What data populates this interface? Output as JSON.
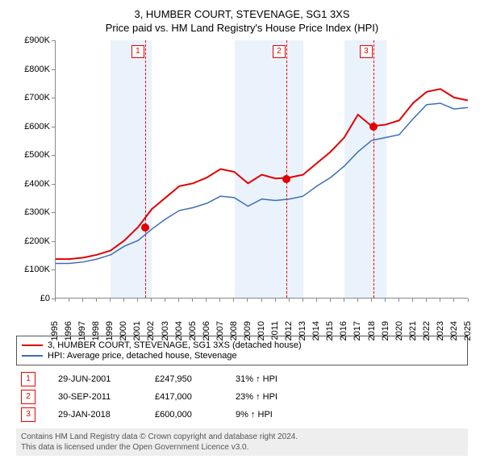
{
  "title1": "3, HUMBER COURT, STEVENAGE, SG1 3XS",
  "title2": "Price paid vs. HM Land Registry's House Price Index (HPI)",
  "chart": {
    "years": [
      "1995",
      "1996",
      "1997",
      "1998",
      "1999",
      "2000",
      "2001",
      "2002",
      "2003",
      "2004",
      "2005",
      "2006",
      "2007",
      "2008",
      "2009",
      "2010",
      "2011",
      "2012",
      "2013",
      "2014",
      "2015",
      "2016",
      "2017",
      "2018",
      "2019",
      "2020",
      "2021",
      "2022",
      "2023",
      "2024",
      "2025"
    ],
    "ylim": [
      0,
      900
    ],
    "ytick_step": 100,
    "ytick_labels": [
      "£0",
      "£100K",
      "£200K",
      "£300K",
      "£400K",
      "£500K",
      "£600K",
      "£700K",
      "£800K",
      "£900K"
    ],
    "band_color": "#eaf2fb",
    "grid_years": [
      "1999",
      "2000",
      "2001",
      "2008",
      "2009",
      "2010",
      "2011",
      "2012",
      "2016",
      "2017",
      "2018"
    ],
    "series": [
      {
        "name": "3, HUMBER COURT, STEVENAGE, SG1 3XS (detached house)",
        "color": "#e00000",
        "width": 2,
        "points": [
          [
            1995,
            135
          ],
          [
            1996,
            135
          ],
          [
            1997,
            140
          ],
          [
            1998,
            150
          ],
          [
            1999,
            165
          ],
          [
            2000,
            200
          ],
          [
            2001,
            247
          ],
          [
            2002,
            310
          ],
          [
            2003,
            350
          ],
          [
            2004,
            390
          ],
          [
            2005,
            400
          ],
          [
            2006,
            420
          ],
          [
            2007,
            450
          ],
          [
            2008,
            440
          ],
          [
            2009,
            400
          ],
          [
            2010,
            430
          ],
          [
            2011,
            417
          ],
          [
            2012,
            420
          ],
          [
            2013,
            430
          ],
          [
            2014,
            470
          ],
          [
            2015,
            510
          ],
          [
            2016,
            560
          ],
          [
            2017,
            640
          ],
          [
            2018,
            600
          ],
          [
            2019,
            605
          ],
          [
            2020,
            620
          ],
          [
            2021,
            680
          ],
          [
            2022,
            720
          ],
          [
            2023,
            730
          ],
          [
            2024,
            700
          ],
          [
            2025,
            690
          ]
        ]
      },
      {
        "name": "HPI: Average price, detached house, Stevenage",
        "color": "#3b6fb6",
        "width": 1.5,
        "points": [
          [
            1995,
            120
          ],
          [
            1996,
            120
          ],
          [
            1997,
            125
          ],
          [
            1998,
            135
          ],
          [
            1999,
            150
          ],
          [
            2000,
            180
          ],
          [
            2001,
            200
          ],
          [
            2002,
            240
          ],
          [
            2003,
            275
          ],
          [
            2004,
            305
          ],
          [
            2005,
            315
          ],
          [
            2006,
            330
          ],
          [
            2007,
            355
          ],
          [
            2008,
            350
          ],
          [
            2009,
            320
          ],
          [
            2010,
            345
          ],
          [
            2011,
            340
          ],
          [
            2012,
            345
          ],
          [
            2013,
            355
          ],
          [
            2014,
            390
          ],
          [
            2015,
            420
          ],
          [
            2016,
            460
          ],
          [
            2017,
            510
          ],
          [
            2018,
            550
          ],
          [
            2019,
            560
          ],
          [
            2020,
            570
          ],
          [
            2021,
            625
          ],
          [
            2022,
            675
          ],
          [
            2023,
            680
          ],
          [
            2024,
            660
          ],
          [
            2025,
            665
          ]
        ]
      }
    ],
    "markers": [
      {
        "n": "1",
        "year": 2001.5,
        "value": 247
      },
      {
        "n": "2",
        "year": 2011.75,
        "value": 417
      },
      {
        "n": "3",
        "year": 2018.08,
        "value": 600
      }
    ],
    "marker_color": "#e00000"
  },
  "sales": [
    {
      "n": "1",
      "date": "29-JUN-2001",
      "price": "£247,950",
      "pct": "31% ↑ HPI"
    },
    {
      "n": "2",
      "date": "30-SEP-2011",
      "price": "£417,000",
      "pct": "23% ↑ HPI"
    },
    {
      "n": "3",
      "date": "29-JAN-2018",
      "price": "£600,000",
      "pct": "9% ↑ HPI"
    }
  ],
  "footer1": "Contains HM Land Registry data © Crown copyright and database right 2024.",
  "footer2": "This data is licensed under the Open Government Licence v3.0."
}
